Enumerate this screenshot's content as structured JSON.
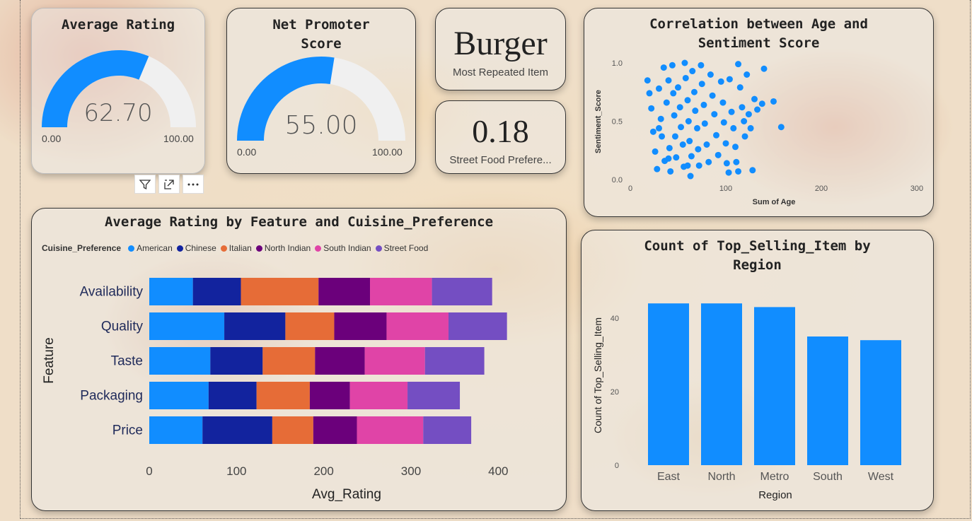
{
  "gauges": [
    {
      "title": "Average Rating",
      "value": "62.70",
      "value_num": 62.7,
      "min": "0.00",
      "max": "100.00"
    },
    {
      "title_line1": "Net Promoter",
      "title_line2": "Score",
      "value": "55.00",
      "value_num": 55.0,
      "min": "0.00",
      "max": "100.00"
    }
  ],
  "cards": {
    "most_repeated": {
      "value": "Burger",
      "label": "Most Repeated Item"
    },
    "street_food": {
      "value": "0.18",
      "label": "Street Food Prefere..."
    }
  },
  "colors": {
    "accent": "#118DFF",
    "gauge_track": "#F0F0F0",
    "American": "#118DFF",
    "Chinese": "#12239E",
    "Italian": "#E66C37",
    "North Indian": "#6B007B",
    "South Indian": "#E044A7",
    "Street Food": "#744EC2"
  },
  "visual_toolbar": {
    "icons": [
      "filter-icon",
      "focus-mode-icon",
      "more-options-icon"
    ]
  },
  "scatter": {
    "title_line1": "Correlation between Age and",
    "title_line2": "Sentiment Score",
    "chart_data": {
      "type": "scatter",
      "xlabel": "Sum of Age",
      "ylabel": "Sentiment_Score",
      "xlim": [
        0,
        300
      ],
      "ylim": [
        0,
        1
      ],
      "xticks": [
        "0",
        "100",
        "200",
        "300"
      ],
      "yticks": [
        "0.0",
        "0.5",
        "1.0"
      ],
      "points": [
        [
          18,
          0.85
        ],
        [
          20,
          0.74
        ],
        [
          22,
          0.61
        ],
        [
          24,
          0.41
        ],
        [
          26,
          0.24
        ],
        [
          28,
          0.09
        ],
        [
          30,
          0.78
        ],
        [
          32,
          0.52
        ],
        [
          33,
          0.37
        ],
        [
          35,
          0.96
        ],
        [
          36,
          0.16
        ],
        [
          38,
          0.66
        ],
        [
          40,
          0.85
        ],
        [
          41,
          0.27
        ],
        [
          42,
          0.07
        ],
        [
          44,
          0.98
        ],
        [
          45,
          0.74
        ],
        [
          46,
          0.55
        ],
        [
          47,
          0.37
        ],
        [
          48,
          0.19
        ],
        [
          50,
          0.79
        ],
        [
          52,
          0.62
        ],
        [
          53,
          0.45
        ],
        [
          55,
          0.3
        ],
        [
          56,
          0.11
        ],
        [
          57,
          1.0
        ],
        [
          58,
          0.87
        ],
        [
          60,
          0.68
        ],
        [
          61,
          0.5
        ],
        [
          62,
          0.33
        ],
        [
          63,
          0.03
        ],
        [
          64,
          0.2
        ],
        [
          65,
          0.93
        ],
        [
          67,
          0.75
        ],
        [
          68,
          0.59
        ],
        [
          70,
          0.44
        ],
        [
          71,
          0.26
        ],
        [
          72,
          0.12
        ],
        [
          74,
          0.98
        ],
        [
          75,
          0.82
        ],
        [
          77,
          0.64
        ],
        [
          78,
          0.48
        ],
        [
          80,
          0.3
        ],
        [
          82,
          0.15
        ],
        [
          84,
          0.9
        ],
        [
          86,
          0.72
        ],
        [
          88,
          0.56
        ],
        [
          90,
          0.38
        ],
        [
          92,
          0.21
        ],
        [
          95,
          0.84
        ],
        [
          97,
          0.66
        ],
        [
          98,
          0.49
        ],
        [
          100,
          0.31
        ],
        [
          101,
          0.14
        ],
        [
          103,
          0.06
        ],
        [
          104,
          0.86
        ],
        [
          106,
          0.58
        ],
        [
          108,
          0.44
        ],
        [
          110,
          0.28
        ],
        [
          111,
          0.15
        ],
        [
          113,
          0.99
        ],
        [
          115,
          0.79
        ],
        [
          117,
          0.62
        ],
        [
          119,
          0.5
        ],
        [
          120,
          0.37
        ],
        [
          122,
          0.9
        ],
        [
          124,
          0.56
        ],
        [
          126,
          0.44
        ],
        [
          128,
          0.08
        ],
        [
          130,
          0.69
        ],
        [
          133,
          0.6
        ],
        [
          138,
          0.65
        ],
        [
          140,
          0.95
        ],
        [
          150,
          0.67
        ],
        [
          158,
          0.45
        ],
        [
          113,
          0.07
        ],
        [
          60,
          0.12
        ],
        [
          40,
          0.18
        ],
        [
          30,
          0.44
        ]
      ]
    }
  },
  "stacked": {
    "title": "Average Rating by Feature and Cuisine_Preference",
    "legend_title": "Cuisine_Preference",
    "chart_data": {
      "type": "bar",
      "orientation": "horizontal",
      "stacked": true,
      "categories": [
        "Availability",
        "Quality",
        "Taste",
        "Packaging",
        "Price"
      ],
      "series": [
        {
          "name": "American",
          "values": [
            50,
            86,
            70,
            68,
            61
          ]
        },
        {
          "name": "Chinese",
          "values": [
            55,
            70,
            60,
            55,
            80
          ]
        },
        {
          "name": "Italian",
          "values": [
            89,
            56,
            60,
            61,
            47
          ]
        },
        {
          "name": "North Indian",
          "values": [
            59,
            60,
            57,
            46,
            50
          ]
        },
        {
          "name": "South Indian",
          "values": [
            71,
            71,
            69,
            66,
            76
          ]
        },
        {
          "name": "Street Food",
          "values": [
            69,
            67,
            68,
            60,
            55
          ]
        }
      ],
      "xlabel": "Avg_Rating",
      "ylabel": "Feature",
      "xlim": [
        0,
        420
      ],
      "xticks": [
        "0",
        "100",
        "200",
        "300",
        "400"
      ]
    }
  },
  "region": {
    "title_line1": "Count of Top_Selling_Item by",
    "title_line2": "Region",
    "chart_data": {
      "type": "bar",
      "categories": [
        "East",
        "North",
        "Metro",
        "South",
        "West"
      ],
      "values": [
        44,
        44,
        43,
        35,
        34
      ],
      "xlabel": "Region",
      "ylabel": "Count of Top_Selling_Item",
      "ylim": [
        0,
        48
      ],
      "yticks": [
        "0",
        "20",
        "40"
      ]
    }
  }
}
